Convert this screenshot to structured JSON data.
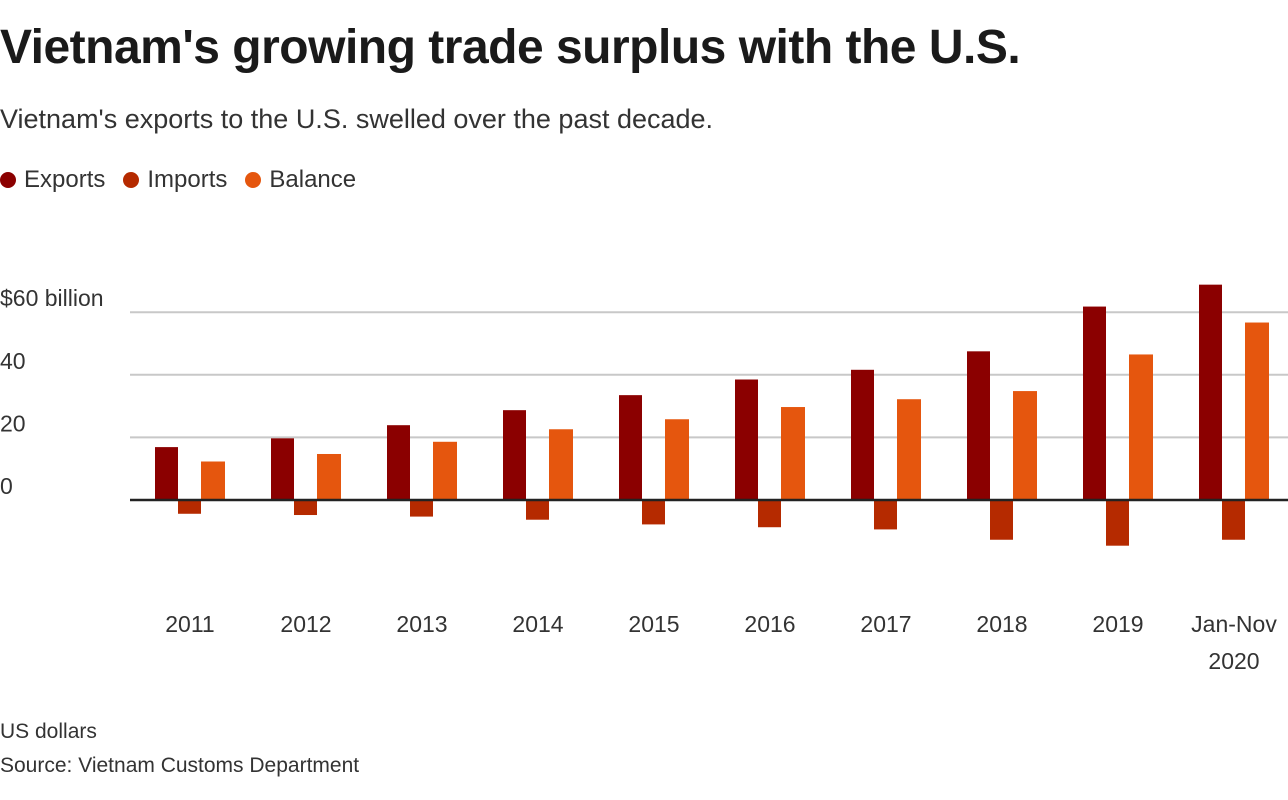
{
  "title": "Vietnam's growing trade surplus with the U.S.",
  "subtitle": "Vietnam's exports to the U.S. swelled over the past decade.",
  "footer": {
    "unit_note": "US dollars",
    "source": "Source: Vietnam Customs Department"
  },
  "chart_data": {
    "type": "bar",
    "categories": [
      "2011",
      "2012",
      "2013",
      "2014",
      "2015",
      "2016",
      "2017",
      "2018",
      "2019",
      "Jan-Nov 2020"
    ],
    "series": [
      {
        "name": "Exports",
        "color": "#8b0000",
        "values": [
          16.9,
          19.7,
          23.9,
          28.7,
          33.5,
          38.5,
          41.6,
          47.5,
          61.8,
          68.8
        ]
      },
      {
        "name": "Imports",
        "color": "#b52a00",
        "values": [
          -4.4,
          -4.8,
          -5.3,
          -6.3,
          -7.8,
          -8.7,
          -9.4,
          -12.7,
          -14.6,
          -12.7
        ]
      },
      {
        "name": "Balance",
        "color": "#e5560e",
        "values": [
          12.3,
          14.7,
          18.6,
          22.6,
          25.8,
          29.7,
          32.2,
          34.8,
          46.5,
          56.7
        ]
      }
    ],
    "yticks": [
      {
        "value": 0,
        "label": "0"
      },
      {
        "value": 20,
        "label": "20"
      },
      {
        "value": 40,
        "label": "40"
      },
      {
        "value": 60,
        "label": "$60 billion"
      }
    ],
    "ylim": [
      -20,
      70
    ],
    "grid": true,
    "legend": "top-left"
  }
}
